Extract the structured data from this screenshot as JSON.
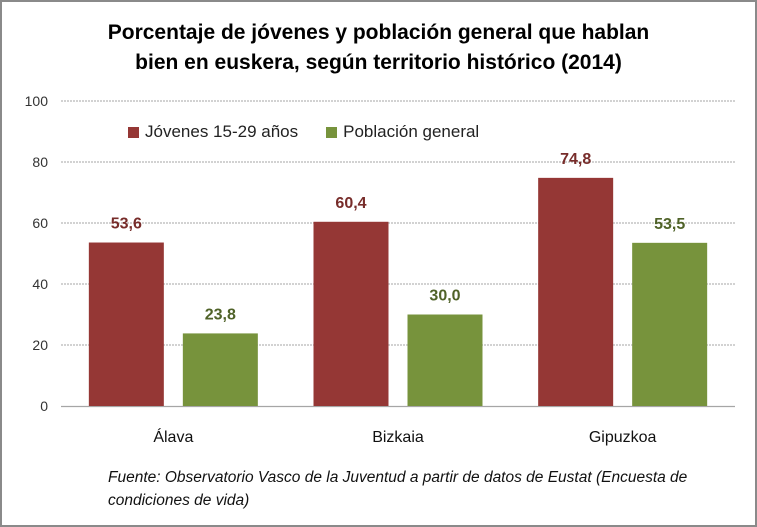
{
  "chart_data": {
    "type": "bar",
    "title_lines": [
      "Porcentaje de jóvenes y población general que hablan",
      "bien en euskera, según territorio histórico (2014)"
    ],
    "categories": [
      "Álava",
      "Bizkaia",
      "Gipuzkoa"
    ],
    "series": [
      {
        "name": "Jóvenes 15-29 años",
        "values": [
          53.6,
          60.4,
          74.8
        ],
        "labels": [
          "53,6",
          "60,4",
          "74,8"
        ],
        "color": "#953735",
        "label_color": "#772c2a"
      },
      {
        "name": "Población general",
        "values": [
          23.8,
          30.0,
          53.5
        ],
        "labels": [
          "23,8",
          "30,0",
          "53,5"
        ],
        "color": "#77933c",
        "label_color": "#4f6228"
      }
    ],
    "ylim": [
      0,
      100
    ],
    "yticks": [
      0,
      20,
      40,
      60,
      80,
      100
    ],
    "xlabel": "",
    "ylabel": "",
    "grid": true,
    "legend_position": "top-left",
    "note": "Fuente: Observatorio Vasco de la Juventud a partir de datos de Eustat (Encuesta de condiciones de vida)"
  }
}
